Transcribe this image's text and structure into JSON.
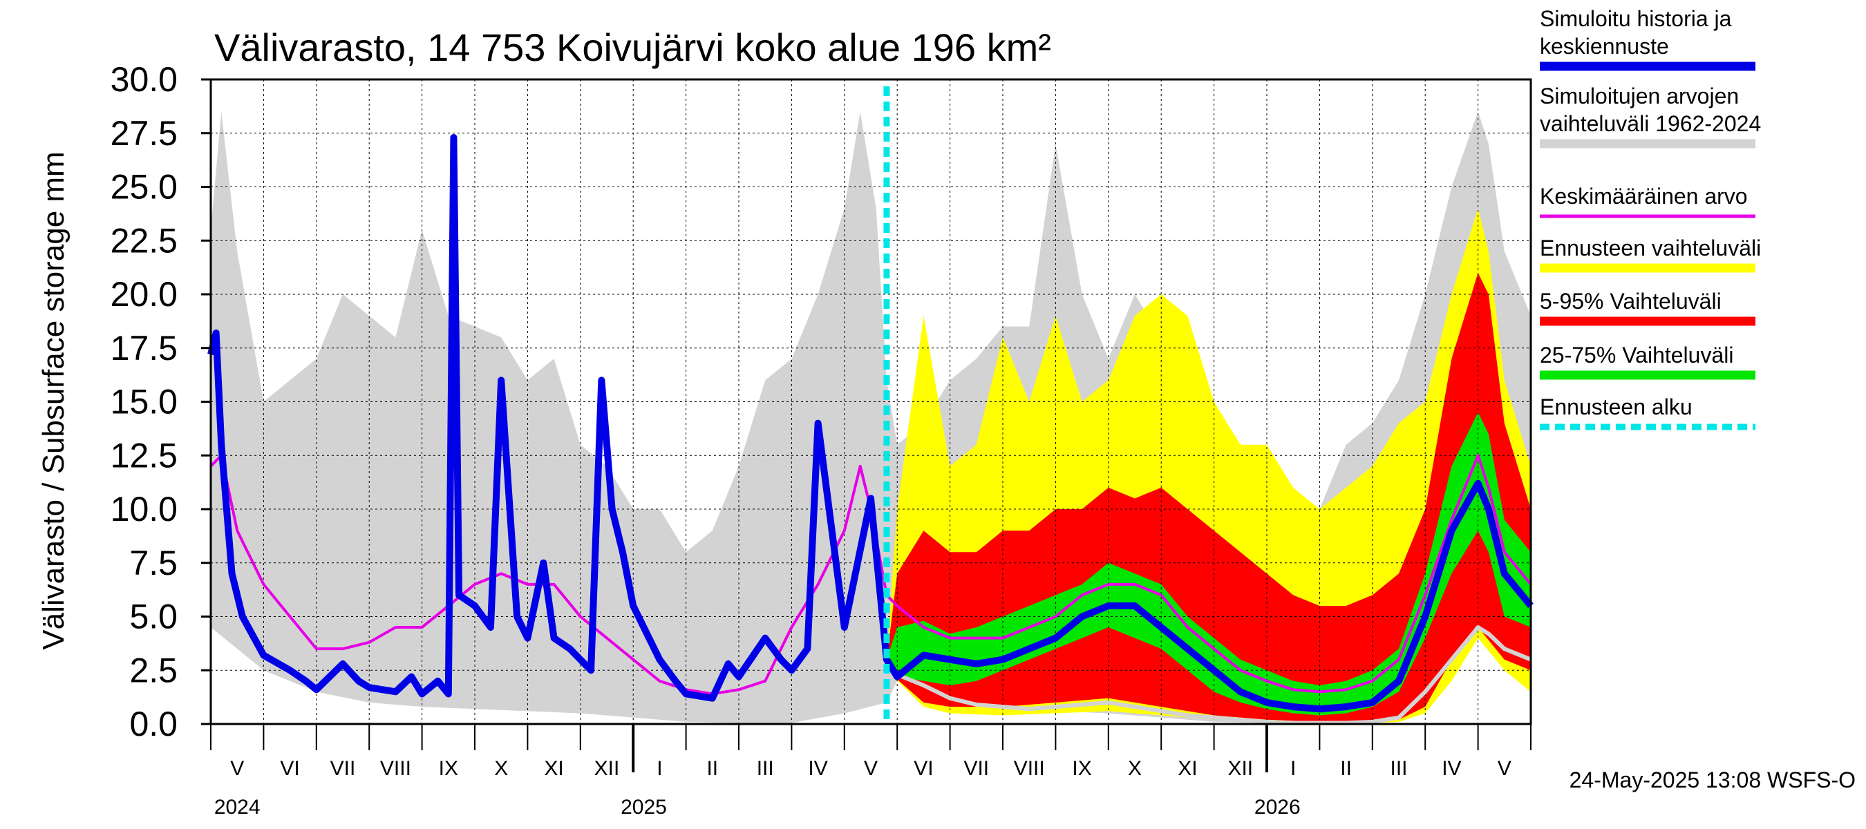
{
  "chart_data": {
    "type": "area",
    "title": "Välivarasto, 14 753 Koivujärvi koko alue 196 km²",
    "ylabel": "Välivarasto / Subsurface storage  mm",
    "xlabel": "",
    "ylim": [
      0,
      30
    ],
    "y_ticks": [
      "0.0",
      "2.5",
      "5.0",
      "7.5",
      "10.0",
      "12.5",
      "15.0",
      "17.5",
      "20.0",
      "22.5",
      "25.0",
      "27.5",
      "30.0"
    ],
    "month_labels": [
      "V",
      "VI",
      "VII",
      "VIII",
      "IX",
      "X",
      "XI",
      "XII",
      "I",
      "II",
      "III",
      "IV",
      "V",
      "VI",
      "VII",
      "VIII",
      "IX",
      "X",
      "XI",
      "XII",
      "I",
      "II",
      "III",
      "IV",
      "V"
    ],
    "year_labels": [
      "2024",
      "2025",
      "2026"
    ],
    "x_range_months": [
      0,
      25
    ],
    "forecast_start_month": 12.8,
    "footer": "24-May-2025 13:08 WSFS-O",
    "legend": [
      {
        "label": "Simuloitu historia ja keskiennuste",
        "color": "#0000e6",
        "style": "solid"
      },
      {
        "label": "Simuloitujen arvojen vaihteluväli 1962-2024",
        "color": "#d3d3d3",
        "style": "solid"
      },
      {
        "label": "Keskimääräinen arvo",
        "color": "#e600e6",
        "style": "solid"
      },
      {
        "label": "Ennusteen vaihteluväli",
        "color": "#ffff00",
        "style": "solid"
      },
      {
        "label": "5-95% Vaihteluväli",
        "color": "#ff0000",
        "style": "solid"
      },
      {
        "label": "25-75% Vaihteluväli",
        "color": "#00e600",
        "style": "solid"
      },
      {
        "label": "Ennusteen alku",
        "color": "#00e6e6",
        "style": "dashed"
      }
    ],
    "series": [
      {
        "name": "Simuloitu historia ja keskiennuste",
        "color": "#0000e6",
        "x": [
          0,
          0.1,
          0.2,
          0.4,
          0.6,
          1.0,
          1.5,
          1.8,
          2.0,
          2.5,
          2.8,
          3.0,
          3.5,
          3.8,
          4.0,
          4.3,
          4.5,
          4.6,
          4.7,
          5.0,
          5.3,
          5.5,
          5.8,
          6.0,
          6.3,
          6.5,
          6.8,
          7.0,
          7.2,
          7.4,
          7.6,
          7.8,
          8.0,
          8.5,
          8.8,
          9.0,
          9.5,
          9.8,
          10.0,
          10.5,
          10.8,
          11.0,
          11.3,
          11.5,
          12.0,
          12.5,
          12.8,
          13.0,
          13.5,
          14.0,
          14.5,
          15.0,
          15.5,
          16.0,
          16.5,
          17.0,
          17.5,
          18.0,
          18.5,
          19.0,
          19.5,
          20.0,
          20.5,
          21.0,
          21.5,
          22.0,
          22.5,
          23.0,
          23.5,
          24.0,
          24.2,
          24.5,
          25.0
        ],
        "values": [
          17.2,
          18.2,
          13.0,
          7.0,
          5.0,
          3.2,
          2.5,
          2.0,
          1.6,
          2.8,
          2.0,
          1.7,
          1.5,
          2.2,
          1.4,
          2.0,
          1.4,
          27.3,
          6.0,
          5.5,
          4.5,
          16.0,
          5.0,
          4.0,
          7.5,
          4.0,
          3.5,
          3.0,
          2.5,
          16.0,
          10.0,
          8.0,
          5.5,
          3.0,
          2.0,
          1.4,
          1.2,
          2.8,
          2.2,
          4.0,
          3.0,
          2.5,
          3.5,
          14.0,
          4.5,
          10.5,
          3.0,
          2.2,
          3.2,
          3.0,
          2.8,
          3.0,
          3.5,
          4.0,
          5.0,
          5.5,
          5.5,
          4.5,
          3.5,
          2.5,
          1.5,
          1.0,
          0.8,
          0.7,
          0.8,
          1.0,
          2.0,
          5.0,
          9.0,
          11.2,
          10.0,
          7.0,
          5.5
        ]
      },
      {
        "name": "Keskimääräinen arvo",
        "color": "#e600e6",
        "x": [
          0,
          0.2,
          0.5,
          1.0,
          1.5,
          2.0,
          2.5,
          3.0,
          3.5,
          4.0,
          4.5,
          5.0,
          5.5,
          6.0,
          6.5,
          7.0,
          7.5,
          8.0,
          8.5,
          9.0,
          9.5,
          10.0,
          10.5,
          11.0,
          11.5,
          12.0,
          12.3,
          12.5,
          12.8,
          13.0,
          13.5,
          14.0,
          14.5,
          15.0,
          15.5,
          16.0,
          16.5,
          17.0,
          17.5,
          18.0,
          18.5,
          19.0,
          19.5,
          20.0,
          20.5,
          21.0,
          21.5,
          22.0,
          22.5,
          23.0,
          23.5,
          24.0,
          24.2,
          24.5,
          25.0
        ],
        "values": [
          12.0,
          12.5,
          9.0,
          6.5,
          5.0,
          3.5,
          3.5,
          3.8,
          4.5,
          4.5,
          5.5,
          6.5,
          7.0,
          6.5,
          6.5,
          5.0,
          4.0,
          3.0,
          2.0,
          1.6,
          1.4,
          1.6,
          2.0,
          4.5,
          6.5,
          9.0,
          12.0,
          10.0,
          6.0,
          5.5,
          4.5,
          4.0,
          4.0,
          4.0,
          4.5,
          5.0,
          6.0,
          6.5,
          6.5,
          6.0,
          4.5,
          3.5,
          2.5,
          2.0,
          1.6,
          1.5,
          1.6,
          2.0,
          3.0,
          6.0,
          9.5,
          12.5,
          11.0,
          8.0,
          6.5
        ]
      },
      {
        "name": "Simuloitujen arvojen vaihteluväli 1962-2024 (upper)",
        "color": "#d3d3d3",
        "x": [
          0,
          0.2,
          0.5,
          1.0,
          1.5,
          2.0,
          2.5,
          3.0,
          3.5,
          4.0,
          4.5,
          5.0,
          5.5,
          6.0,
          6.5,
          7.0,
          7.5,
          8.0,
          8.5,
          9.0,
          9.5,
          10.0,
          10.5,
          11.0,
          11.5,
          12.0,
          12.3,
          12.6,
          12.8,
          13.0,
          13.5,
          14.0,
          14.5,
          15.0,
          15.5,
          16.0,
          16.5,
          17.0,
          17.5,
          18.0,
          18.5,
          19.0,
          19.5,
          20.0,
          20.5,
          21.0,
          21.5,
          22.0,
          22.5,
          23.0,
          23.5,
          24.0,
          24.2,
          24.5,
          25.0
        ],
        "values": [
          23.0,
          28.5,
          22.0,
          15.0,
          16.0,
          17.0,
          20.0,
          19.0,
          18.0,
          23.0,
          19.0,
          18.5,
          18.0,
          16.0,
          17.0,
          13.0,
          12.0,
          10.0,
          10.0,
          8.0,
          9.0,
          12.0,
          16.0,
          17.0,
          20.0,
          24.0,
          28.5,
          24.0,
          16.0,
          13.0,
          14.0,
          16.0,
          17.0,
          18.5,
          18.5,
          27.0,
          20.0,
          17.0,
          20.0,
          18.0,
          14.0,
          13.0,
          12.0,
          11.0,
          10.0,
          10.0,
          13.0,
          14.0,
          16.0,
          20.0,
          25.0,
          28.5,
          27.0,
          22.0,
          19.0
        ]
      },
      {
        "name": "Simuloitujen arvojen vaihteluväli 1962-2024 (lower)",
        "color": "#d3d3d3",
        "x": [
          0,
          1,
          2,
          3,
          4,
          5,
          6,
          7,
          8,
          9,
          10,
          11,
          12,
          12.8,
          13,
          14,
          15,
          16,
          17,
          18,
          19,
          20,
          21,
          22,
          22.5,
          23,
          23.5,
          24,
          24.2,
          24.5,
          25
        ],
        "values": [
          4.5,
          2.5,
          1.5,
          1.0,
          0.8,
          0.7,
          0.6,
          0.5,
          0.3,
          0.1,
          0.05,
          0.05,
          0.5,
          1.0,
          2.0,
          1.0,
          0.7,
          0.6,
          0.5,
          0.3,
          0.1,
          0.05,
          0.05,
          0.05,
          0.5,
          2.0,
          3.5,
          4.5,
          4.0,
          3.5,
          3.0
        ]
      },
      {
        "name": "Ennusteen vaihteluväli (upper)",
        "color": "#ffff00",
        "x": [
          12.8,
          13.0,
          13.5,
          14.0,
          14.5,
          15.0,
          15.5,
          16.0,
          16.5,
          17.0,
          17.5,
          18.0,
          18.5,
          19.0,
          19.5,
          20.0,
          20.5,
          21.0,
          21.5,
          22.0,
          22.5,
          23.0,
          23.5,
          24.0,
          24.2,
          24.5,
          25.0
        ],
        "values": [
          3.0,
          10.0,
          19.0,
          12.0,
          13.0,
          18.0,
          15.0,
          19.0,
          15.0,
          16.0,
          19.0,
          20.0,
          19.0,
          15.0,
          13.0,
          13.0,
          11.0,
          10.0,
          11.0,
          12.0,
          14.0,
          15.0,
          20.0,
          24.0,
          22.0,
          16.0,
          12.0
        ]
      },
      {
        "name": "Ennusteen vaihteluväli (lower)",
        "color": "#ffff00",
        "x": [
          12.8,
          13.5,
          14.0,
          15.0,
          16.0,
          17.0,
          18.0,
          19.0,
          20.0,
          21.0,
          22.0,
          22.5,
          23.0,
          23.5,
          24.0,
          24.5,
          25.0
        ],
        "values": [
          2.5,
          0.8,
          0.5,
          0.4,
          0.5,
          0.6,
          0.4,
          0.2,
          0.1,
          0.05,
          0.05,
          0.1,
          0.5,
          2.0,
          4.0,
          2.5,
          1.5
        ]
      },
      {
        "name": "5-95% Vaihteluväli (upper)",
        "color": "#ff0000",
        "x": [
          12.8,
          13.0,
          13.5,
          14.0,
          14.5,
          15.0,
          15.5,
          16.0,
          16.5,
          17.0,
          17.5,
          18.0,
          18.5,
          19.0,
          19.5,
          20.0,
          20.5,
          21.0,
          21.5,
          22.0,
          22.5,
          23.0,
          23.5,
          24.0,
          24.2,
          24.5,
          25.0
        ],
        "values": [
          3.0,
          7.0,
          9.0,
          8.0,
          8.0,
          9.0,
          9.0,
          10.0,
          10.0,
          11.0,
          10.5,
          11.0,
          10.0,
          9.0,
          8.0,
          7.0,
          6.0,
          5.5,
          5.5,
          6.0,
          7.0,
          10.0,
          17.0,
          21.0,
          20.0,
          14.0,
          10.0
        ]
      },
      {
        "name": "5-95% Vaihteluväli (lower)",
        "color": "#ff0000",
        "x": [
          12.8,
          13.5,
          14.0,
          15.0,
          16.0,
          17.0,
          18.0,
          19.0,
          20.0,
          21.0,
          22.0,
          22.5,
          23.0,
          23.5,
          24.0,
          24.5,
          25.0
        ],
        "values": [
          2.5,
          1.0,
          0.8,
          0.8,
          1.0,
          1.2,
          0.8,
          0.4,
          0.2,
          0.1,
          0.1,
          0.2,
          0.8,
          3.0,
          4.5,
          3.0,
          2.5
        ]
      },
      {
        "name": "25-75% Vaihteluväli (upper)",
        "color": "#00e600",
        "x": [
          12.8,
          13.0,
          13.5,
          14.0,
          14.5,
          15.0,
          15.5,
          16.0,
          16.5,
          17.0,
          17.5,
          18.0,
          18.5,
          19.0,
          19.5,
          20.0,
          20.5,
          21.0,
          21.5,
          22.0,
          22.5,
          23.0,
          23.5,
          24.0,
          24.2,
          24.5,
          25.0
        ],
        "values": [
          3.0,
          4.5,
          4.8,
          4.2,
          4.5,
          5.0,
          5.5,
          6.0,
          6.5,
          7.5,
          7.0,
          6.5,
          5.0,
          4.0,
          3.0,
          2.5,
          2.0,
          1.8,
          2.0,
          2.5,
          3.5,
          7.0,
          12.0,
          14.5,
          13.5,
          9.5,
          8.0
        ]
      },
      {
        "name": "25-75% Vaihteluväli (lower)",
        "color": "#00e600",
        "x": [
          12.8,
          13.0,
          13.5,
          14.0,
          14.5,
          15.0,
          15.5,
          16.0,
          16.5,
          17.0,
          17.5,
          18.0,
          18.5,
          19.0,
          19.5,
          20.0,
          20.5,
          21.0,
          21.5,
          22.0,
          22.5,
          23.0,
          23.5,
          24.0,
          24.2,
          24.5,
          25.0
        ],
        "values": [
          2.8,
          2.2,
          2.0,
          1.8,
          2.0,
          2.5,
          3.0,
          3.5,
          4.0,
          4.5,
          4.0,
          3.5,
          2.5,
          1.5,
          1.0,
          0.7,
          0.5,
          0.4,
          0.5,
          0.8,
          1.5,
          4.0,
          7.0,
          9.0,
          8.0,
          5.0,
          4.5
        ]
      },
      {
        "name": "Simuloitujen arvojen minimi (ennuste)",
        "color": "#d3d3d3",
        "x": [
          12.8,
          13.0,
          13.5,
          14.0,
          14.5,
          15.0,
          15.5,
          16.0,
          16.5,
          17.0,
          17.5,
          18.0,
          18.5,
          19.0,
          19.5,
          20.0,
          20.5,
          21.0,
          21.5,
          22.0,
          22.5,
          23.0,
          23.5,
          24.0,
          24.2,
          24.5,
          25.0
        ],
        "values": [
          2.5,
          2.3,
          1.8,
          1.2,
          0.9,
          0.8,
          0.7,
          0.8,
          0.9,
          1.0,
          0.8,
          0.6,
          0.4,
          0.3,
          0.2,
          0.1,
          0.05,
          0.05,
          0.05,
          0.1,
          0.3,
          1.5,
          3.0,
          4.5,
          4.2,
          3.5,
          3.0
        ]
      }
    ]
  }
}
